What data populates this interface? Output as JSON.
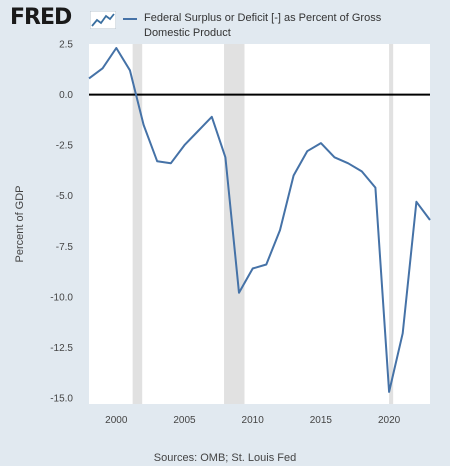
{
  "header": {
    "logo": "FRED",
    "logo_icon": "fred-trend-chart-icon",
    "legend_label": "Federal Surplus or Deficit [-] as Percent of Gross Domestic Product"
  },
  "footer": {
    "sources": "Sources: OMB; St. Louis Fed"
  },
  "colors": {
    "series": "#4572a7",
    "recession": "#e1e1e1",
    "plot_bg": "#ffffff",
    "page_bg": "#e1e9f0"
  },
  "chart_data": {
    "type": "line",
    "ylabel": "Percent of GDP",
    "ylim": [
      -15.0,
      2.5
    ],
    "xlim": [
      1998.0,
      2023.0
    ],
    "y_ticks": [
      "2.5",
      "0.0",
      "-2.5",
      "-5.0",
      "-7.5",
      "-10.0",
      "-12.5",
      "-15.0"
    ],
    "x_ticks": [
      "2000",
      "2005",
      "2010",
      "2015",
      "2020"
    ],
    "zero_line": 0.0,
    "grid": false,
    "recessions": [
      [
        2001.2,
        2001.9
      ],
      [
        2007.9,
        2009.4
      ],
      [
        2020.0,
        2020.3
      ]
    ],
    "series": [
      {
        "x": [
          1998,
          1999,
          2000,
          2001,
          2002,
          2003,
          2004,
          2005,
          2006,
          2007,
          2008,
          2009,
          2010,
          2011,
          2012,
          2013,
          2014,
          2015,
          2016,
          2017,
          2018,
          2019,
          2020,
          2021,
          2022,
          2023
        ],
        "values": [
          0.8,
          1.3,
          2.3,
          1.2,
          -1.5,
          -3.3,
          -3.4,
          -2.5,
          -1.8,
          -1.1,
          -3.1,
          -9.8,
          -8.6,
          -8.4,
          -6.7,
          -4.0,
          -2.8,
          -2.4,
          -3.1,
          -3.4,
          -3.8,
          -4.6,
          -14.7,
          -11.8,
          -5.3,
          -6.2
        ]
      }
    ]
  }
}
